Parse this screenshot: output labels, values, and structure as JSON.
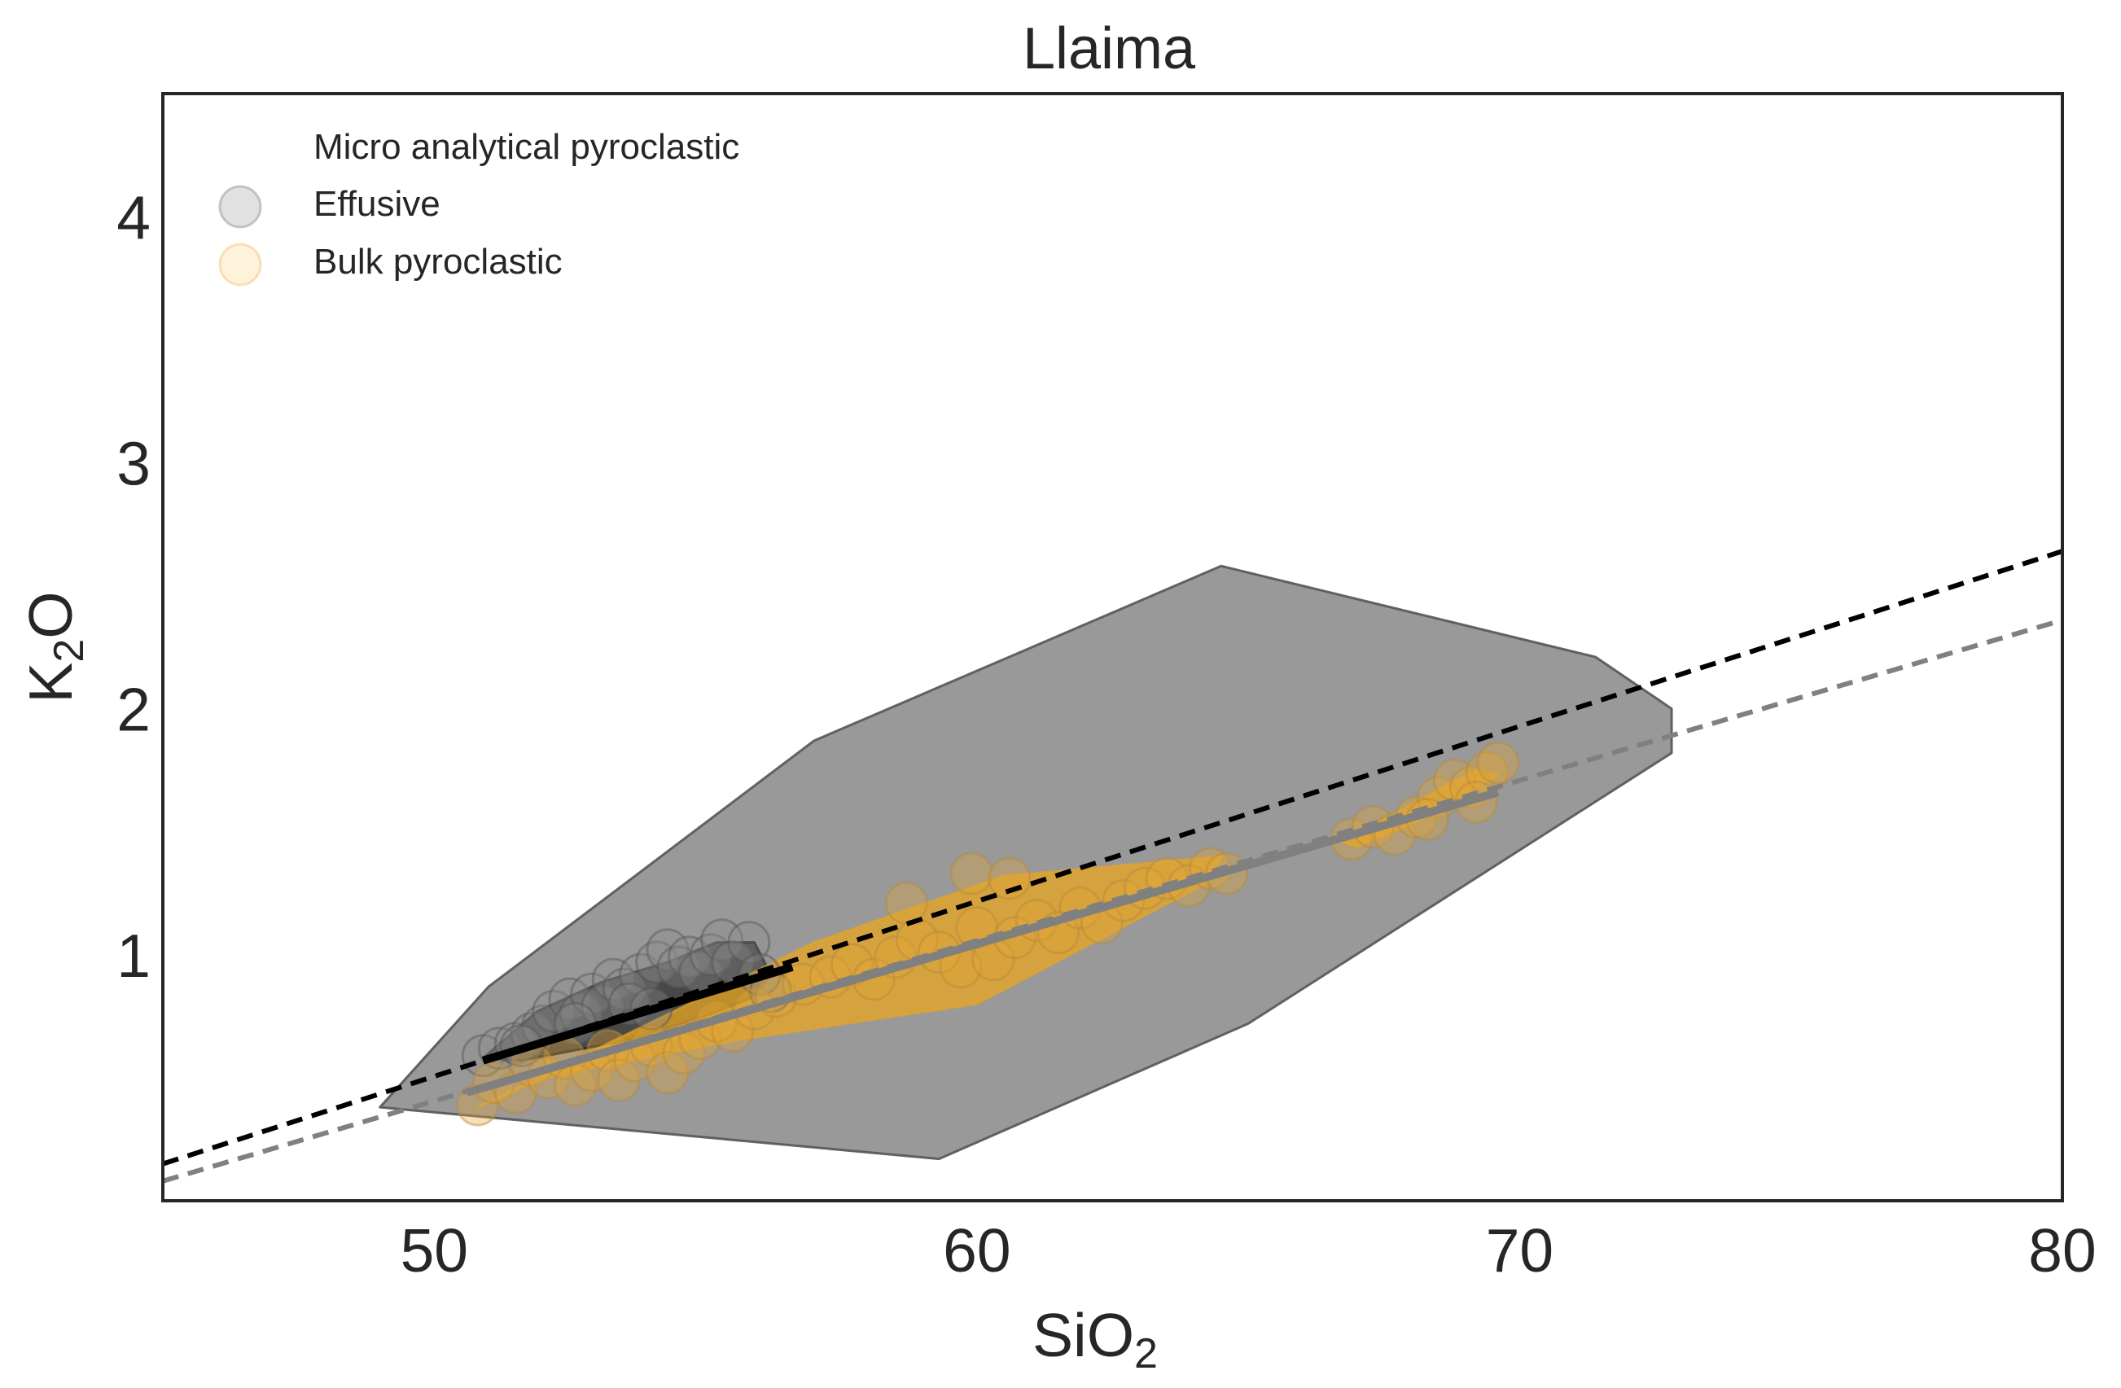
{
  "chart_data": {
    "type": "scatter",
    "title": "Llaima",
    "xlabel": {
      "base": "SiO",
      "sub": "2"
    },
    "ylabel": {
      "base": "K",
      "sub": "2",
      "rest": "O"
    },
    "xlim": [
      45,
      80
    ],
    "ylim": [
      0,
      4.5
    ],
    "x_ticks": [
      50,
      60,
      70,
      80
    ],
    "y_ticks": [
      1,
      2,
      3,
      4
    ],
    "grid": false,
    "legend": {
      "placement": "top-left",
      "entries": [
        {
          "label": "Micro analytical pyroclastic",
          "marker": "none",
          "color": ""
        },
        {
          "label": "Effusive",
          "marker": "circle",
          "color": "#bdbdbd"
        },
        {
          "label": "Bulk pyroclastic",
          "marker": "circle",
          "color": "#fde3b0"
        }
      ]
    },
    "colors": {
      "axes": "#262626",
      "hull_total": "#999999",
      "hull_effusive": "#3a3a3a",
      "hull_bulk": "#e8a520",
      "points_effusive": "#8c8c8c",
      "points_bulk": "#e3a537",
      "fit_black": "#000000",
      "fit_gray": "#808080"
    },
    "series": [
      {
        "name": "Effusive",
        "kind": "points",
        "points": [
          [
            50.9,
            0.59
          ],
          [
            51.2,
            0.62
          ],
          [
            51.5,
            0.64
          ],
          [
            51.8,
            0.68
          ],
          [
            52.0,
            0.71
          ],
          [
            52.2,
            0.77
          ],
          [
            52.5,
            0.82
          ],
          [
            52.7,
            0.76
          ],
          [
            52.9,
            0.84
          ],
          [
            53.1,
            0.79
          ],
          [
            53.3,
            0.9
          ],
          [
            53.5,
            0.86
          ],
          [
            53.8,
            0.92
          ],
          [
            54.1,
            0.97
          ],
          [
            54.3,
            1.02
          ],
          [
            54.5,
            0.95
          ],
          [
            54.7,
            0.99
          ],
          [
            54.9,
            0.93
          ],
          [
            55.1,
            1.0
          ],
          [
            55.3,
            1.06
          ],
          [
            55.5,
            0.97
          ],
          [
            55.8,
            1.05
          ],
          [
            56.0,
            0.92
          ],
          [
            56.2,
            0.85
          ],
          [
            53.6,
            0.8
          ],
          [
            52.6,
            0.72
          ],
          [
            51.6,
            0.63
          ],
          [
            54.0,
            0.78
          ]
        ]
      },
      {
        "name": "Bulk pyroclastic",
        "kind": "points",
        "points": [
          [
            50.8,
            0.39
          ],
          [
            51.1,
            0.48
          ],
          [
            51.5,
            0.44
          ],
          [
            51.8,
            0.55
          ],
          [
            52.1,
            0.5
          ],
          [
            52.4,
            0.58
          ],
          [
            52.6,
            0.47
          ],
          [
            52.9,
            0.53
          ],
          [
            53.2,
            0.61
          ],
          [
            53.4,
            0.49
          ],
          [
            53.7,
            0.57
          ],
          [
            54.0,
            0.63
          ],
          [
            54.3,
            0.52
          ],
          [
            54.6,
            0.6
          ],
          [
            54.9,
            0.66
          ],
          [
            55.2,
            0.73
          ],
          [
            55.5,
            0.69
          ],
          [
            55.9,
            0.78
          ],
          [
            56.3,
            0.83
          ],
          [
            56.8,
            0.88
          ],
          [
            57.3,
            0.91
          ],
          [
            57.7,
            0.96
          ],
          [
            58.1,
            0.9
          ],
          [
            58.5,
            0.99
          ],
          [
            58.9,
            1.06
          ],
          [
            59.3,
            1.01
          ],
          [
            59.7,
            0.95
          ],
          [
            60.0,
            1.11
          ],
          [
            60.3,
            0.98
          ],
          [
            60.7,
            1.07
          ],
          [
            61.1,
            1.14
          ],
          [
            61.5,
            1.09
          ],
          [
            61.9,
            1.19
          ],
          [
            62.3,
            1.13
          ],
          [
            62.7,
            1.22
          ],
          [
            63.1,
            1.27
          ],
          [
            63.5,
            1.31
          ],
          [
            63.9,
            1.28
          ],
          [
            64.3,
            1.35
          ],
          [
            64.6,
            1.33
          ],
          [
            58.7,
            1.21
          ],
          [
            59.9,
            1.33
          ],
          [
            60.6,
            1.31
          ],
          [
            66.9,
            1.47
          ],
          [
            67.3,
            1.52
          ],
          [
            67.7,
            1.49
          ],
          [
            68.1,
            1.56
          ],
          [
            68.5,
            1.64
          ],
          [
            68.8,
            1.71
          ],
          [
            69.1,
            1.68
          ],
          [
            69.4,
            1.74
          ],
          [
            69.6,
            1.78
          ],
          [
            68.3,
            1.55
          ],
          [
            69.2,
            1.62
          ]
        ]
      },
      {
        "name": "",
        "kind": "hull",
        "polygon": [
          [
            49.0,
            0.38
          ],
          [
            51.0,
            0.87
          ],
          [
            57.0,
            1.87
          ],
          [
            64.5,
            2.58
          ],
          [
            71.4,
            2.21
          ],
          [
            72.8,
            2.0
          ],
          [
            72.8,
            1.82
          ],
          [
            65.0,
            0.72
          ],
          [
            59.3,
            0.17
          ],
          [
            49.0,
            0.38
          ]
        ]
      },
      {
        "name": "",
        "kind": "hull",
        "polygon": [
          [
            50.9,
            0.58
          ],
          [
            51.9,
            0.77
          ],
          [
            53.1,
            0.89
          ],
          [
            54.3,
            0.97
          ],
          [
            55.2,
            1.05
          ],
          [
            55.9,
            1.05
          ],
          [
            56.2,
            0.92
          ],
          [
            55.9,
            0.83
          ],
          [
            55.0,
            0.75
          ],
          [
            53.5,
            0.65
          ],
          [
            51.6,
            0.57
          ],
          [
            50.9,
            0.58
          ]
        ]
      },
      {
        "name": "",
        "kind": "hull",
        "polygon": [
          [
            50.8,
            0.38
          ],
          [
            57.0,
            1.05
          ],
          [
            60.5,
            1.32
          ],
          [
            64.5,
            1.4
          ],
          [
            64.3,
            1.3
          ],
          [
            60.0,
            0.8
          ],
          [
            55.5,
            0.65
          ],
          [
            52.0,
            0.5
          ],
          [
            50.8,
            0.38
          ]
        ]
      },
      {
        "name": "",
        "kind": "hull",
        "polygon": [
          [
            66.7,
            1.46
          ],
          [
            69.2,
            1.75
          ],
          [
            69.6,
            1.73
          ],
          [
            68.0,
            1.53
          ],
          [
            67.0,
            1.44
          ],
          [
            66.7,
            1.46
          ]
        ]
      },
      {
        "name": "",
        "kind": "fit",
        "style": "solid",
        "x": [
          50.9,
          56.6
        ],
        "y": [
          0.57,
          0.95
        ]
      },
      {
        "name": "",
        "kind": "fit",
        "style": "solid",
        "x": [
          50.6,
          69.6
        ],
        "y": [
          0.44,
          1.66
        ]
      },
      {
        "name": "",
        "kind": "fit",
        "style": "dashed",
        "x": [
          45.0,
          80.0
        ],
        "y": [
          0.15,
          2.64
        ]
      },
      {
        "name": "",
        "kind": "fit",
        "style": "dashed",
        "x": [
          45.0,
          80.0
        ],
        "y": [
          0.08,
          2.36
        ]
      }
    ]
  }
}
